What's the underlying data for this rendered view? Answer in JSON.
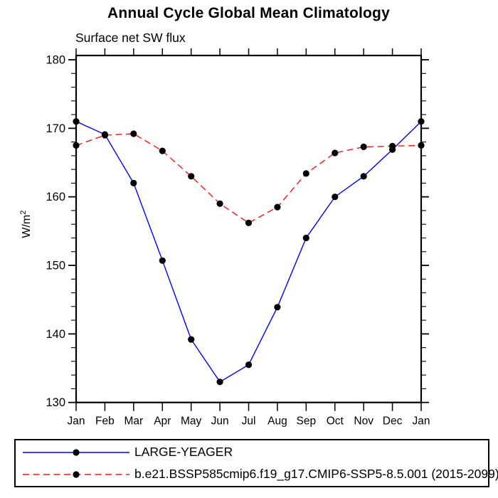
{
  "chart_data": {
    "type": "line",
    "title": "Annual Cycle Global Mean Climatology",
    "subtitle": "Surface net SW flux",
    "ylabel": "W/m²",
    "ylabel_base": "W/m",
    "ylabel_sup": "2",
    "categories": [
      "Jan",
      "Feb",
      "Mar",
      "Apr",
      "May",
      "Jun",
      "Jul",
      "Aug",
      "Sep",
      "Oct",
      "Nov",
      "Dec",
      "Jan"
    ],
    "ylim": [
      130,
      180
    ],
    "ytick_major": 10,
    "ytick_minor": 2,
    "grid": false,
    "legend_position": "bottom",
    "marker_color": "#000000",
    "series": [
      {
        "name": "LARGE-YEAGER",
        "color": "#0000ff",
        "line_style": "solid",
        "marker": "circle",
        "values": [
          171.0,
          169.1,
          162.0,
          150.7,
          139.2,
          133.0,
          135.5,
          143.9,
          154.0,
          160.0,
          163.0,
          166.9,
          171.0
        ]
      },
      {
        "name": "b.e21.BSSP585cmip6.f19_g17.CMIP6-SSP5-8.5.001 (2015-2099)",
        "color": "#fb1414",
        "line_style": "dashed",
        "marker": "circle",
        "values": [
          167.5,
          169.0,
          169.2,
          166.7,
          163.0,
          159.0,
          156.2,
          158.5,
          163.4,
          166.4,
          167.3,
          167.4,
          167.5
        ]
      }
    ]
  }
}
